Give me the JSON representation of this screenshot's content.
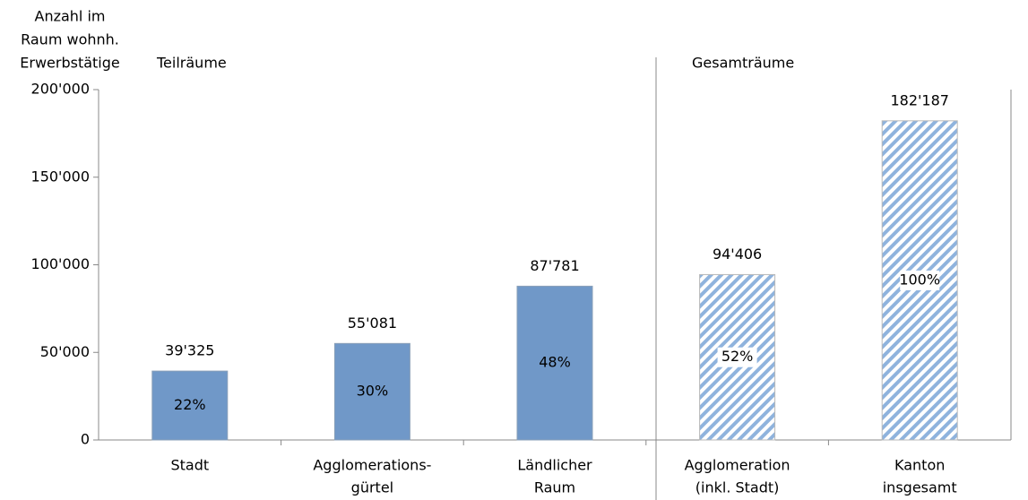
{
  "chart_data": {
    "type": "bar",
    "y_label": [
      "Anzahl im",
      "Raum wohnh.",
      "Erwerbstätige"
    ],
    "groups": [
      "Teilräume",
      "Gesamträume"
    ],
    "categories": [
      [
        "Stadt"
      ],
      [
        "Agglomerations-",
        "gürtel"
      ],
      [
        "Ländlicher",
        "Raum"
      ],
      [
        "Agglomeration",
        "(inkl. Stadt)"
      ],
      [
        "Kanton",
        "insgesamt"
      ]
    ],
    "values": [
      39325,
      55081,
      87781,
      94406,
      182187
    ],
    "value_labels": [
      "39'325",
      "55'081",
      "87'781",
      "94'406",
      "182'187"
    ],
    "shares": [
      22,
      30,
      48,
      52,
      100
    ],
    "share_labels": [
      "22%",
      "30%",
      "48%",
      "52%",
      "100%"
    ],
    "styles": [
      "solid",
      "solid",
      "solid",
      "hatched",
      "hatched"
    ],
    "color": "#7098c8",
    "hatch_color": "#8fb3dd",
    "ylim": [
      0,
      200000
    ],
    "yticks": [
      0,
      {
        "value": 50000,
        "label": "50'000"
      },
      {
        "value": 100000,
        "label": "100'000"
      },
      {
        "value": 150000,
        "label": "150'000"
      },
      {
        "value": 200000,
        "label": "200'000"
      }
    ],
    "grid": false
  }
}
